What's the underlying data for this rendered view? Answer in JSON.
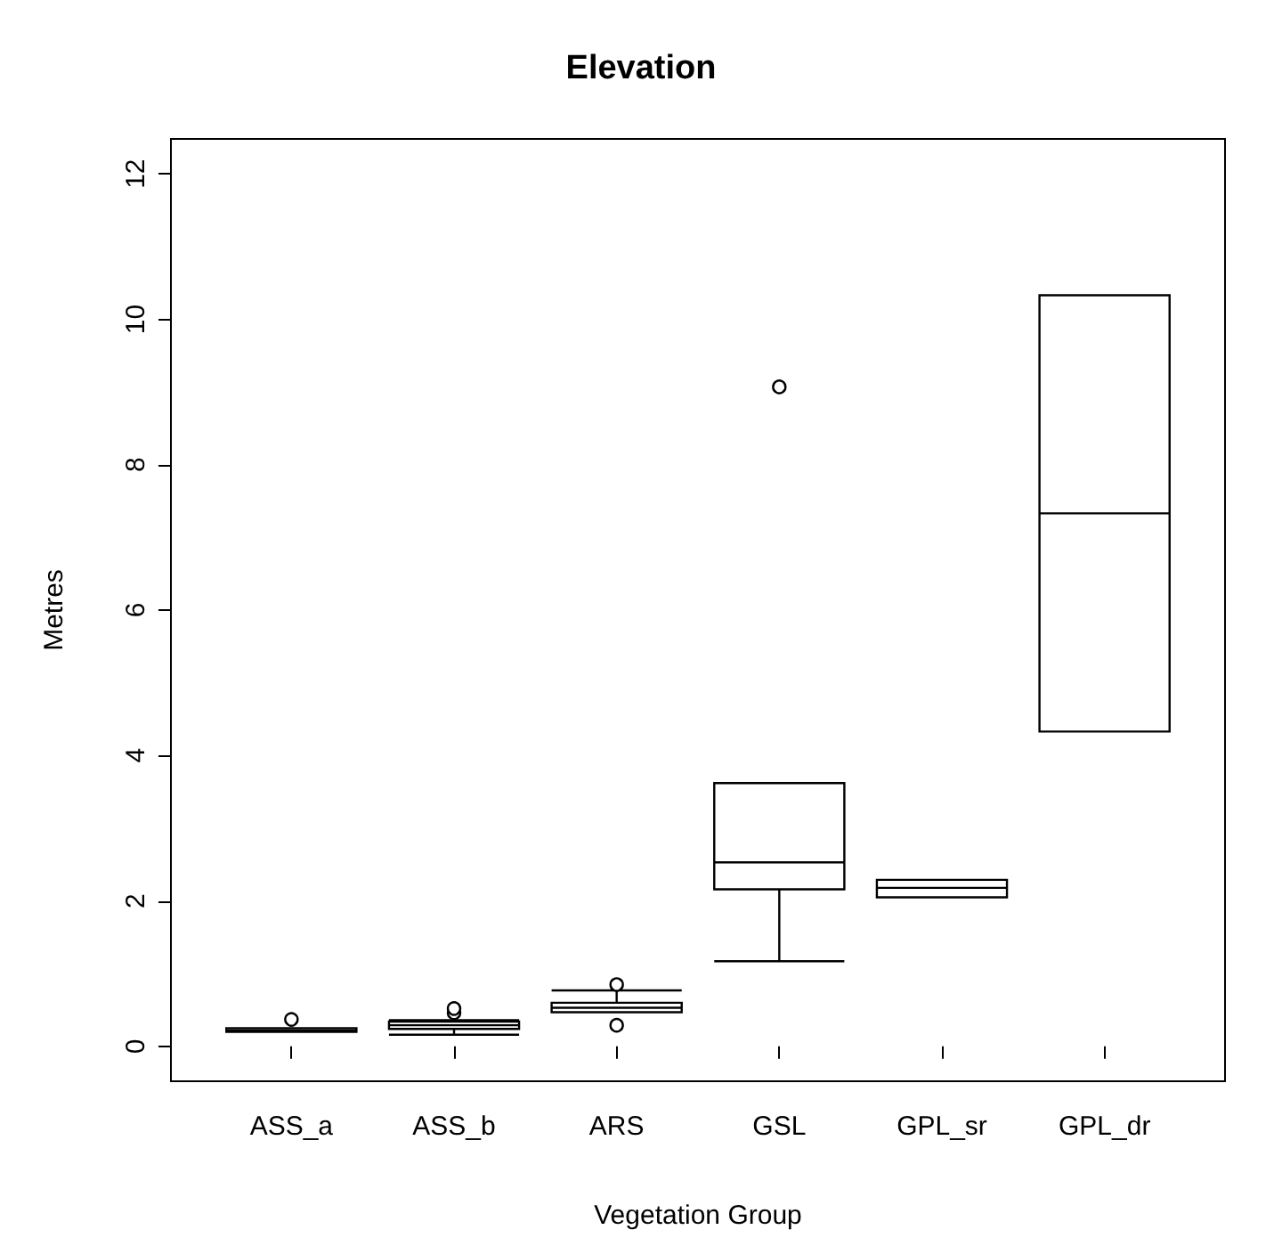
{
  "chart_data": {
    "type": "box",
    "title": "Elevation",
    "xlabel": "Vegetation Group",
    "ylabel": "Metres",
    "categories": [
      "ASS_a",
      "ASS_b",
      "ARS",
      "GSL",
      "GPL_sr",
      "GPL_dr"
    ],
    "boxes": [
      {
        "low": 0.2,
        "q1": 0.2,
        "median": 0.22,
        "q3": 0.25,
        "high": 0.25,
        "outliers": [
          0.37
        ]
      },
      {
        "low": 0.16,
        "q1": 0.24,
        "median": 0.29,
        "q3": 0.34,
        "high": 0.36,
        "outliers": [
          0.46,
          0.52
        ]
      },
      {
        "low": 0.47,
        "q1": 0.47,
        "median": 0.53,
        "q3": 0.6,
        "high": 0.77,
        "outliers": [
          0.29,
          0.85
        ]
      },
      {
        "low": 1.17,
        "q1": 2.16,
        "median": 2.53,
        "q3": 3.62,
        "high": 3.62,
        "outliers": [
          9.07
        ]
      },
      {
        "low": 2.05,
        "q1": 2.05,
        "median": 2.18,
        "q3": 2.29,
        "high": 2.29
      },
      {
        "low": 4.33,
        "q1": 4.33,
        "median": 7.33,
        "q3": 10.33,
        "high": 10.33
      }
    ],
    "color": "#000000",
    "ylim": [
      -0.48,
      12.48
    ],
    "yticks": [
      0,
      2,
      4,
      6,
      8,
      10,
      12
    ],
    "grid": false
  }
}
